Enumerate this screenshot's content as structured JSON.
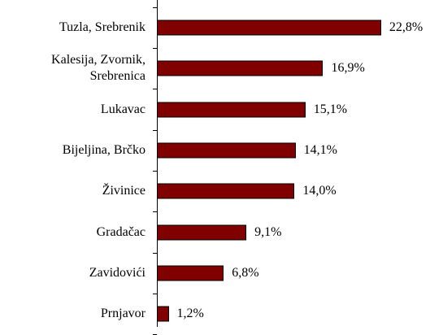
{
  "chart_data": {
    "type": "bar",
    "orientation": "horizontal",
    "categories": [
      "Tuzla, Srebrenik",
      "Kalesija, Zvornik,\nSrebrenica",
      "Lukavac",
      "Bijeljina, Brčko",
      "Živinice",
      "Gradačac",
      "Zavidovići",
      "Prnjavor"
    ],
    "values": [
      22.8,
      16.9,
      15.1,
      14.1,
      14.0,
      9.1,
      6.8,
      1.2
    ],
    "value_labels": [
      "22,8%",
      "16,9%",
      "15,1%",
      "14,1%",
      "14,0%",
      "9,1%",
      "6,8%",
      "1,2%"
    ],
    "color": "#800000"
  }
}
